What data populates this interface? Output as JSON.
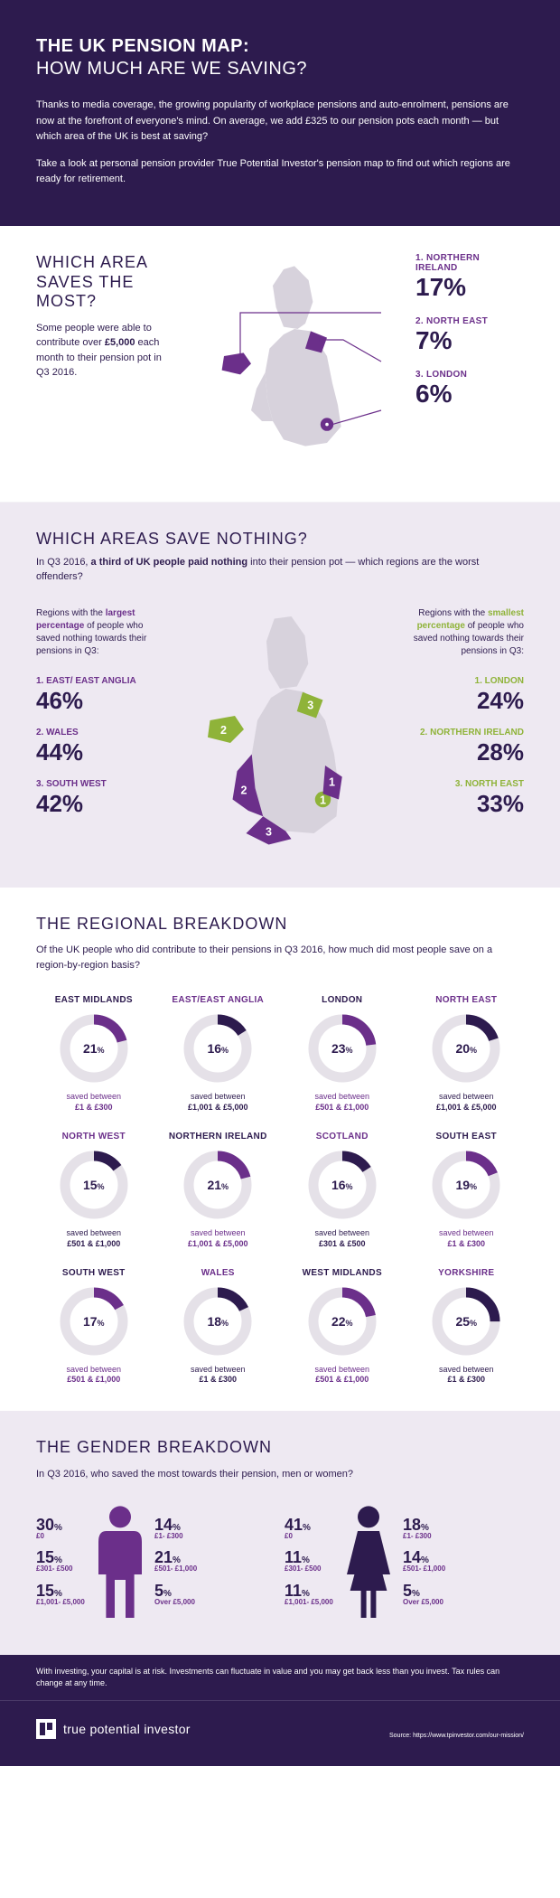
{
  "colors": {
    "purple": "#6b2f8a",
    "navy": "#2d1b4e",
    "green": "#8fb339",
    "track": "#e5e1e8",
    "bg_grey": "#eee9f2",
    "map_grey": "#d7d2dc"
  },
  "hero": {
    "title": "THE UK PENSION MAP:",
    "subtitle": "HOW MUCH ARE WE SAVING?",
    "p1": "Thanks to media coverage, the growing popularity of workplace pensions and auto-enrolment, pensions are now at the forefront of everyone's mind. On average, we add £325 to our pension pots each month — but which area of the UK is best at saving?",
    "p2": "Take a look at personal pension provider True Potential Investor's pension map to find out which regions are ready for retirement."
  },
  "saves_most": {
    "title_1": "WHICH AREA",
    "title_2": "SAVES THE MOST?",
    "sub": "Some people were able to contribute over £5,000 each month to their pension pot in Q3 2016.",
    "ranks": [
      {
        "n": "1.",
        "label": "NORTHERN IRELAND",
        "val": "17%"
      },
      {
        "n": "2.",
        "label": "NORTH EAST",
        "val": "7%"
      },
      {
        "n": "3.",
        "label": "LONDON",
        "val": "6%"
      }
    ]
  },
  "nothing": {
    "title": "WHICH AREAS SAVE NOTHING?",
    "sub": "In Q3 2016, a third of UK people paid nothing into their pension pot — which regions are the worst offenders?",
    "left_intro": "Regions with the largest percentage of people who saved nothing towards their pensions in Q3:",
    "right_intro": "Regions with the smallest percentage of people who saved nothing towards their pensions in Q3:",
    "left": [
      {
        "n": "1.",
        "label": "EAST/ EAST ANGLIA",
        "val": "46%"
      },
      {
        "n": "2.",
        "label": "WALES",
        "val": "44%"
      },
      {
        "n": "3.",
        "label": "SOUTH WEST",
        "val": "42%"
      }
    ],
    "right": [
      {
        "n": "1.",
        "label": "LONDON",
        "val": "24%"
      },
      {
        "n": "2.",
        "label": "NORTHERN IRELAND",
        "val": "28%"
      },
      {
        "n": "3.",
        "label": "NORTH EAST",
        "val": "33%"
      }
    ]
  },
  "regional": {
    "title": "THE REGIONAL BREAKDOWN",
    "sub": "Of the UK people who did contribute to their pensions in Q3 2016, how much did most people save on a region-by-region basis?",
    "arc_color": "#6b2f8a",
    "arc_alt_color": "#2d1b4e",
    "track_color": "#e5e1e8",
    "items": [
      {
        "region": "EAST MIDLANDS",
        "pct": 21,
        "range": "£1 & £300",
        "alt": false
      },
      {
        "region": "EAST/EAST ANGLIA",
        "pct": 16,
        "range": "£1,001 & £5,000",
        "alt": true
      },
      {
        "region": "LONDON",
        "pct": 23,
        "range": "£501 & £1,000",
        "alt": false
      },
      {
        "region": "NORTH EAST",
        "pct": 20,
        "range": "£1,001 & £5,000",
        "alt": true
      },
      {
        "region": "NORTH WEST",
        "pct": 15,
        "range": "£501 & £1,000",
        "alt": true
      },
      {
        "region": "NORTHERN IRELAND",
        "pct": 21,
        "range": "£1,001 & £5,000",
        "alt": false
      },
      {
        "region": "SCOTLAND",
        "pct": 16,
        "range": "£301 & £500",
        "alt": true
      },
      {
        "region": "SOUTH EAST",
        "pct": 19,
        "range": "£1 & £300",
        "alt": false
      },
      {
        "region": "SOUTH WEST",
        "pct": 17,
        "range": "£501 & £1,000",
        "alt": false
      },
      {
        "region": "WALES",
        "pct": 18,
        "range": "£1 & £300",
        "alt": true
      },
      {
        "region": "WEST MIDLANDS",
        "pct": 22,
        "range": "£501 & £1,000",
        "alt": false
      },
      {
        "region": "YORKSHIRE",
        "pct": 25,
        "range": "£1 & £300",
        "alt": true
      }
    ],
    "saved_text": "saved between"
  },
  "gender": {
    "title": "THE GENDER BREAKDOWN",
    "sub": "In Q3 2016, who saved the most towards their pension, men or women?",
    "men": [
      {
        "pct": "30",
        "range": "£0"
      },
      {
        "pct": "15",
        "range": "£301- £500"
      },
      {
        "pct": "15",
        "range": "£1,001- £5,000"
      },
      {
        "pct": "14",
        "range": "£1- £300"
      },
      {
        "pct": "21",
        "range": "£501- £1,000"
      },
      {
        "pct": "5",
        "range": "Over £5,000"
      }
    ],
    "women": [
      {
        "pct": "41",
        "range": "£0"
      },
      {
        "pct": "11",
        "range": "£301- £500"
      },
      {
        "pct": "11",
        "range": "£1,001- £5,000"
      },
      {
        "pct": "18",
        "range": "£1- £300"
      },
      {
        "pct": "14",
        "range": "£501- £1,000"
      },
      {
        "pct": "5",
        "range": "Over £5,000"
      }
    ]
  },
  "disclaimer": "With investing, your capital is at risk. Investments can fluctuate in value and you may get back less than you invest. Tax rules can change at any time.",
  "footer": {
    "brand": "true potential investor",
    "source": "Source: https://www.tpinvestor.com/our-mission/"
  }
}
